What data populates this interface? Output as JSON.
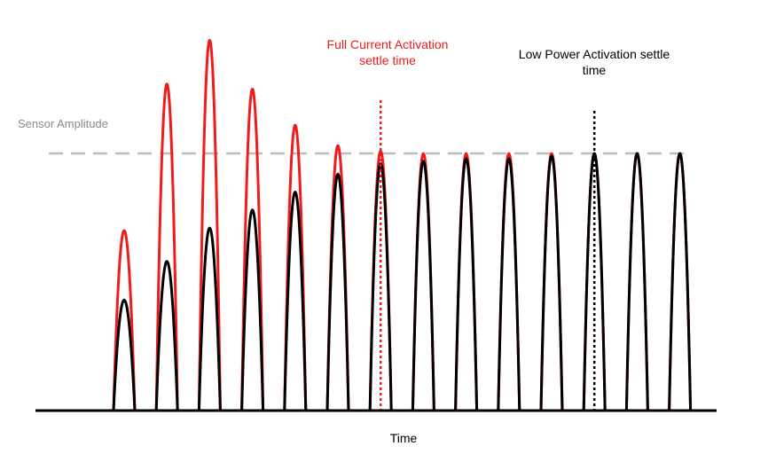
{
  "chart_data": {
    "type": "line",
    "xlabel": "Time",
    "ylabel": "",
    "reference_line": {
      "label": "Sensor Amplitude",
      "value": 1.0,
      "color": "#bdbdbd"
    },
    "annotations": [
      {
        "lines": [
          "Full Current Activation",
          "settle time"
        ],
        "color": "#ee1c1c",
        "pulse_index": 6
      },
      {
        "lines": [
          "Low Power Activation settle",
          "time"
        ],
        "color": "#000000",
        "pulse_index": 11
      }
    ],
    "pulse_count": 14,
    "series": [
      {
        "color": "#ee1c1c",
        "peaks": [
          0.7,
          1.27,
          1.44,
          1.25,
          1.11,
          1.03,
          1.01,
          1.0,
          1.0,
          1.0,
          1.0,
          1.0,
          1.0,
          1.0
        ]
      },
      {
        "color": "#000000",
        "peaks": [
          0.43,
          0.58,
          0.71,
          0.78,
          0.85,
          0.92,
          0.96,
          0.97,
          0.98,
          0.98,
          0.99,
          1.0,
          1.0,
          1.0
        ]
      }
    ],
    "ylim": [
      0,
      1.45
    ],
    "grid": false,
    "legend": "none"
  }
}
